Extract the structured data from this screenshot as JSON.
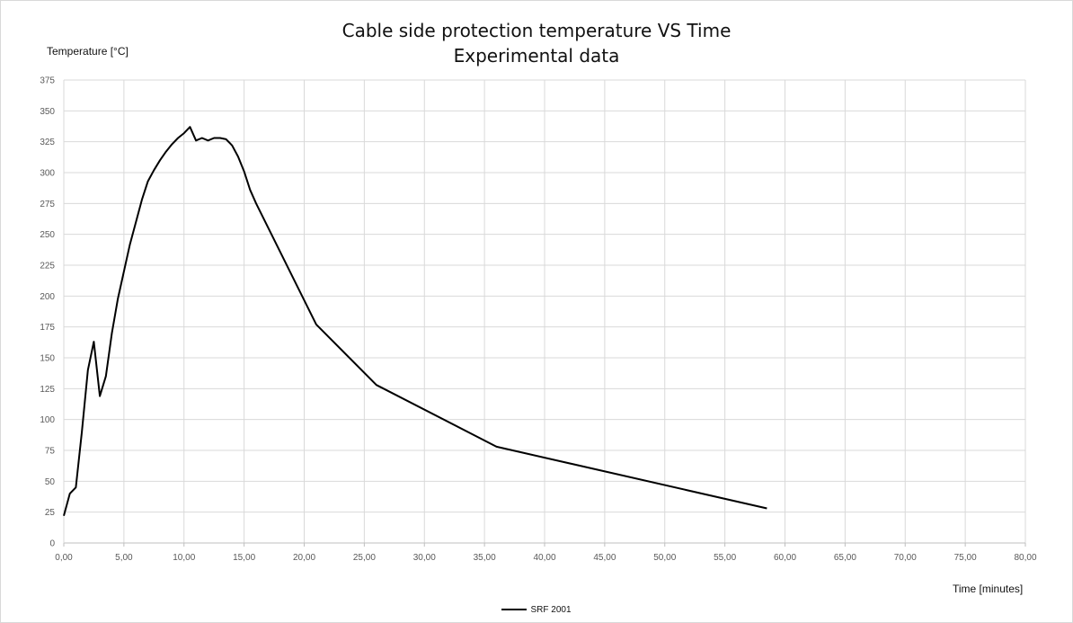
{
  "chart_data": {
    "type": "line",
    "title_line1": "Cable side protection temperature VS Time",
    "title_line2": "Experimental data",
    "xlabel": "Time  [minutes]",
    "ylabel": "Temperature  [°C]",
    "xlim": [
      0,
      80
    ],
    "ylim": [
      0,
      375
    ],
    "x_ticks": [
      "0,00",
      "5,00",
      "10,00",
      "15,00",
      "20,00",
      "25,00",
      "30,00",
      "35,00",
      "40,00",
      "45,00",
      "50,00",
      "55,00",
      "60,00",
      "65,00",
      "70,00",
      "75,00",
      "80,00"
    ],
    "y_ticks": [
      "0",
      "25",
      "50",
      "75",
      "100",
      "125",
      "150",
      "175",
      "200",
      "225",
      "250",
      "275",
      "300",
      "325",
      "350",
      "375"
    ],
    "grid": true,
    "legend_position": "bottom",
    "series": [
      {
        "name": "SRF 2001",
        "color": "#000000",
        "x": [
          0.0,
          0.5,
          1.0,
          1.5,
          2.0,
          2.5,
          3.0,
          3.5,
          4.0,
          4.5,
          5.0,
          5.5,
          6.0,
          6.5,
          7.0,
          7.5,
          8.0,
          8.5,
          9.0,
          9.5,
          10.0,
          10.5,
          11.0,
          11.5,
          12.0,
          12.5,
          13.0,
          13.5,
          14.0,
          14.5,
          15.0,
          15.5,
          16.0,
          21.0,
          26.0,
          36.0,
          58.5
        ],
        "y": [
          22,
          40,
          45,
          90,
          140,
          163,
          119,
          135,
          170,
          198,
          220,
          242,
          260,
          278,
          293,
          302,
          310,
          317,
          323,
          328,
          332,
          337,
          326,
          328,
          326,
          328,
          328,
          327,
          322,
          313,
          301,
          286,
          275,
          177,
          128,
          78,
          28
        ]
      }
    ]
  }
}
